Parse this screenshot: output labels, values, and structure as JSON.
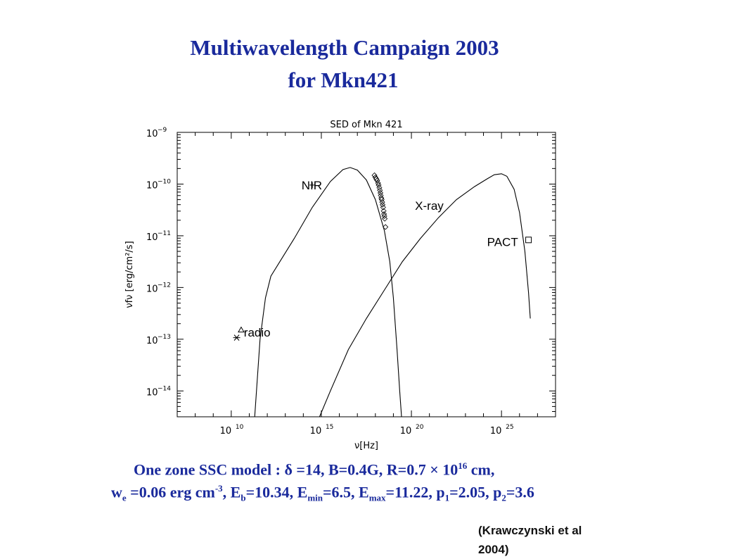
{
  "slide": {
    "title_line1": "Multiwavelength  Campaign 2003",
    "title_line2": "for Mkn421",
    "caption_line1_parts": [
      "One zone SSC model :   δ =14, B=0.4G, R=0.7 × 10",
      "16",
      " cm,"
    ],
    "caption_line2_parts": [
      "w",
      "e",
      " =0.06 erg cm",
      "-3",
      ", E",
      "b",
      "=10.34, E",
      "min",
      "=6.5, E",
      "max",
      "=11.22, p",
      "1",
      "=2.05, p",
      "2",
      "=3.6"
    ],
    "citation_line1": "(Krawczynski et al",
    "citation_line2": "2004)"
  },
  "chart_data": {
    "type": "scatter",
    "title": "SED of Mkn 421",
    "xlabel": "ν[Hz]",
    "ylabel": "νfν [erg/cm²/s]",
    "x_scale": "log",
    "y_scale": "log",
    "xlim_log10": [
      7,
      28
    ],
    "ylim_log10": [
      -14.5,
      -9
    ],
    "x_ticks": [
      {
        "base": "10",
        "exp": "10",
        "v": 10
      },
      {
        "base": "10",
        "exp": "15",
        "v": 15
      },
      {
        "base": "10",
        "exp": "20",
        "v": 20
      },
      {
        "base": "10",
        "exp": "25",
        "v": 25
      }
    ],
    "y_ticks": [
      {
        "base": "10",
        "exp": "−9",
        "v": -9
      },
      {
        "base": "10",
        "exp": "−10",
        "v": -10
      },
      {
        "base": "10",
        "exp": "−11",
        "v": -11
      },
      {
        "base": "10",
        "exp": "−12",
        "v": -12
      },
      {
        "base": "10",
        "exp": "−13",
        "v": -13
      },
      {
        "base": "10",
        "exp": "−14",
        "v": -14
      }
    ],
    "annotations": [
      {
        "text": "NIR",
        "log_nu": 13.9,
        "log_nufnu": -10.1
      },
      {
        "text": "X-ray",
        "log_nu": 20.2,
        "log_nufnu": -10.5
      },
      {
        "text": "PACT",
        "log_nu": 24.2,
        "log_nufnu": -11.2
      },
      {
        "text": "radio",
        "log_nu": 10.7,
        "log_nufnu": -12.95
      }
    ],
    "series": [
      {
        "kind": "curve",
        "points": [
          [
            11.3,
            -14.5
          ],
          [
            11.6,
            -13.0
          ],
          [
            11.9,
            -12.2
          ],
          [
            12.2,
            -11.78
          ],
          [
            12.7,
            -11.5
          ],
          [
            13.5,
            -11.05
          ],
          [
            14.5,
            -10.45
          ],
          [
            15.5,
            -9.95
          ],
          [
            16.2,
            -9.72
          ],
          [
            16.6,
            -9.68
          ],
          [
            17.0,
            -9.73
          ],
          [
            17.5,
            -9.92
          ],
          [
            18.0,
            -10.3
          ],
          [
            18.5,
            -10.9
          ],
          [
            18.8,
            -11.5
          ],
          [
            19.0,
            -12.2
          ],
          [
            19.2,
            -13.2
          ],
          [
            19.35,
            -14.0
          ],
          [
            19.45,
            -14.5
          ]
        ]
      },
      {
        "kind": "curve",
        "points": [
          [
            14.9,
            -14.5
          ],
          [
            15.5,
            -14.0
          ],
          [
            16.5,
            -13.2
          ],
          [
            17.5,
            -12.6
          ],
          [
            18.5,
            -12.05
          ],
          [
            19.5,
            -11.5
          ],
          [
            20.5,
            -11.05
          ],
          [
            21.5,
            -10.65
          ],
          [
            22.5,
            -10.3
          ],
          [
            23.5,
            -10.05
          ],
          [
            24.2,
            -9.9
          ],
          [
            24.6,
            -9.82
          ],
          [
            25.0,
            -9.8
          ],
          [
            25.3,
            -9.85
          ],
          [
            25.7,
            -10.1
          ],
          [
            26.0,
            -10.55
          ],
          [
            26.3,
            -11.3
          ],
          [
            26.5,
            -12.1
          ],
          [
            26.6,
            -12.6
          ]
        ]
      },
      {
        "kind": "points",
        "marker": "diamond",
        "points": [
          [
            17.95,
            -9.83
          ],
          [
            18.0,
            -9.87
          ],
          [
            18.05,
            -9.9
          ],
          [
            18.1,
            -9.93
          ],
          [
            18.15,
            -9.98
          ],
          [
            18.18,
            -10.02
          ],
          [
            18.22,
            -10.07
          ],
          [
            18.25,
            -10.12
          ],
          [
            18.28,
            -10.17
          ],
          [
            18.3,
            -10.22
          ],
          [
            18.33,
            -10.27
          ],
          [
            18.35,
            -10.3
          ],
          [
            18.38,
            -10.35
          ],
          [
            18.4,
            -10.4
          ],
          [
            18.43,
            -10.45
          ],
          [
            18.46,
            -10.52
          ],
          [
            18.48,
            -10.58
          ],
          [
            18.5,
            -10.62
          ],
          [
            18.52,
            -10.67
          ],
          [
            18.56,
            -10.83
          ]
        ]
      },
      {
        "kind": "points",
        "marker": "plus",
        "label": "NIR",
        "points": [
          [
            14.5,
            -10.02
          ]
        ]
      },
      {
        "kind": "points",
        "marker": "square",
        "label": "PACT",
        "points": [
          [
            26.5,
            -11.08
          ]
        ]
      },
      {
        "kind": "points",
        "marker": "triangle",
        "label": "radio",
        "points": [
          [
            10.55,
            -12.82
          ]
        ]
      },
      {
        "kind": "points",
        "marker": "asterisk",
        "label": "radio",
        "points": [
          [
            10.3,
            -12.97
          ]
        ]
      }
    ]
  }
}
